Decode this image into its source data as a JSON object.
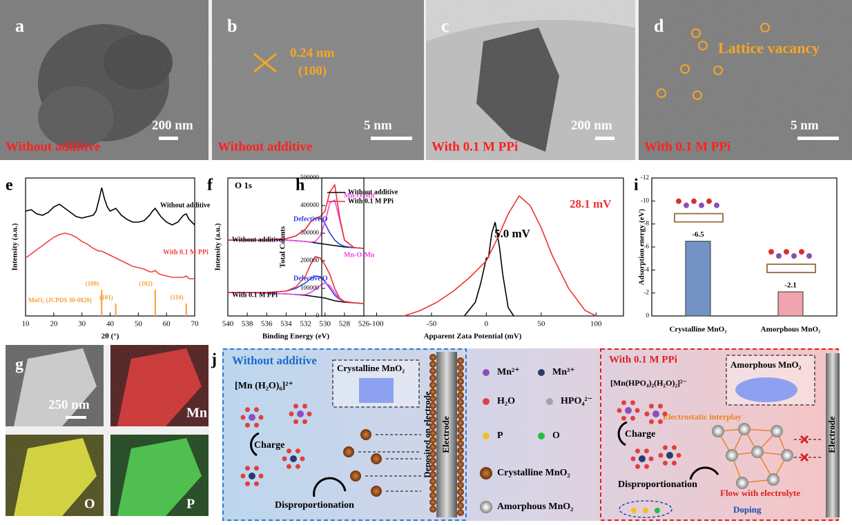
{
  "micrographs": [
    {
      "label": "a",
      "scale": "200 nm",
      "caption": "Without additive"
    },
    {
      "label": "b",
      "spacing": "0.24 nm",
      "plane": "(100)",
      "scale": "5 nm",
      "caption": "Without additive"
    },
    {
      "label": "c",
      "scale": "200 nm",
      "caption": "With 0.1 M PPi"
    },
    {
      "label": "d",
      "annotation": "Lattice vacancy",
      "scale": "5 nm",
      "caption": "With 0.1 M PPi"
    }
  ],
  "chart_data": [
    {
      "panel": "e",
      "type": "line",
      "xlabel": "2θ (°)",
      "ylabel": "Intensity (a.u.)",
      "x": [
        10,
        12,
        14,
        16,
        18,
        20,
        22,
        24,
        26,
        28,
        30,
        32,
        34,
        35,
        36,
        37,
        38,
        39,
        40,
        42,
        44,
        46,
        48,
        50,
        52,
        54,
        55,
        56,
        57,
        58,
        60,
        62,
        64,
        66,
        67,
        68,
        70
      ],
      "series": [
        {
          "name": "Without additive",
          "color": "#000000",
          "values": [
            76,
            77,
            74,
            73,
            75,
            79,
            81,
            78,
            75,
            72,
            71,
            72,
            73,
            76,
            84,
            93,
            85,
            79,
            76,
            78,
            73,
            70,
            68,
            68,
            69,
            73,
            76,
            78,
            75,
            72,
            68,
            66,
            68,
            73,
            74,
            70,
            66
          ]
        },
        {
          "name": "With 0.1 M PPi",
          "color": "#f04040",
          "values": [
            42,
            45,
            48,
            51,
            54,
            57,
            59,
            60,
            59,
            57,
            54,
            52,
            49,
            48,
            47,
            47,
            46,
            45,
            44,
            42,
            40,
            38,
            36,
            35,
            34,
            32,
            32,
            33,
            31,
            30,
            29,
            28,
            28,
            28,
            29,
            27,
            27
          ]
        }
      ],
      "reference": {
        "name": "MnO₂ (JCPDS 30-0820)",
        "color": "#f5a030",
        "positions": [
          37,
          42,
          56,
          67
        ],
        "heights": [
          19,
          9,
          19,
          9
        ],
        "labels": [
          "(100)",
          "(101)",
          "(102)",
          "(110)"
        ]
      },
      "xlim": [
        10,
        70
      ],
      "xticks": [
        10,
        20,
        30,
        40,
        50,
        60,
        70
      ],
      "ylim": [
        0,
        100
      ]
    },
    {
      "panel": "f",
      "type": "line",
      "title": "O 1s",
      "xlabel": "Binding Energy (eV)",
      "ylabel": "Intensity (a.u.)",
      "x": [
        540,
        538,
        536,
        534,
        533,
        532,
        531.5,
        531,
        530.5,
        530,
        529.5,
        529,
        528.5,
        528,
        527,
        526
      ],
      "groups": [
        {
          "name": "Without additive",
          "curves": [
            {
              "color": "#000000",
              "values": [
                55,
                55,
                55,
                55,
                54.5,
                54,
                53.5,
                53,
                52.5,
                52,
                51.5,
                51,
                50.5,
                50,
                49.5,
                49
              ]
            },
            {
              "name": "Defective O",
              "color": "#2a3ee0",
              "values": [
                55,
                55,
                55,
                56,
                58,
                63,
                68,
                71,
                71,
                67,
                60,
                55,
                52,
                50.5,
                49.5,
                49
              ]
            },
            {
              "name": "Mn-O-Mn",
              "color": "#ee44ee",
              "values": [
                55,
                55,
                55,
                55,
                54.5,
                54,
                53.5,
                54,
                58,
                68,
                82,
                84,
                70,
                55,
                49.5,
                49
              ]
            },
            {
              "color": "#f03030",
              "values": [
                55,
                55,
                55,
                56,
                58,
                63,
                68,
                71,
                72,
                76,
                90,
                95,
                72,
                55,
                49.5,
                49
              ]
            }
          ]
        },
        {
          "name": "With 0.1 M PPi",
          "curves": [
            {
              "color": "#000000",
              "values": [
                17,
                17,
                16.5,
                16,
                15.5,
                15,
                14.5,
                14,
                13.5,
                13,
                12,
                11,
                10.5,
                10,
                9.5,
                9
              ]
            },
            {
              "name": "Defective O",
              "color": "#2a3ee0",
              "values": [
                17,
                17,
                17,
                18,
                20,
                24,
                27,
                29,
                28.5,
                25,
                20,
                15,
                12,
                10.5,
                9.5,
                9
              ]
            },
            {
              "name": "Mn-O-Mn",
              "color": "#ee44ee",
              "values": [
                17,
                17,
                16.5,
                16,
                15.5,
                15.5,
                17,
                19,
                22,
                24,
                22,
                17,
                12,
                10.5,
                9.5,
                9
              ]
            },
            {
              "color": "#f03030",
              "values": [
                17,
                17,
                17,
                18,
                21,
                29,
                37,
                43,
                42,
                37,
                30,
                20,
                13,
                10.5,
                9.5,
                9
              ]
            }
          ]
        }
      ],
      "xlim": [
        540,
        526
      ],
      "xticks": [
        540,
        538,
        536,
        534,
        532,
        530,
        528,
        526
      ],
      "ylim": [
        0,
        100
      ]
    },
    {
      "panel": "h",
      "type": "line",
      "xlabel": "Apparent Zata Potential (mV)",
      "ylabel": "Total Counts",
      "series": [
        {
          "name": "Without additive",
          "color": "#000000",
          "x": [
            -20,
            -10,
            -5,
            0,
            2,
            5,
            8,
            12,
            15,
            20,
            25
          ],
          "values": [
            0,
            50000,
            120000,
            210000,
            212000,
            300000,
            340000,
            250000,
            150000,
            30000,
            0
          ]
        },
        {
          "name": "With 0.1 M PPi",
          "color": "#f03030",
          "x": [
            -75,
            -60,
            -45,
            -30,
            -15,
            0,
            10,
            20,
            30,
            40,
            50,
            60,
            75,
            90,
            100
          ],
          "values": [
            0,
            20000,
            50000,
            90000,
            140000,
            200000,
            280000,
            370000,
            435000,
            400000,
            320000,
            220000,
            100000,
            20000,
            0
          ]
        }
      ],
      "annotations": [
        {
          "text": "5.0 mV",
          "color": "#000000"
        },
        {
          "text": "28.1 mV",
          "color": "#f03030"
        }
      ],
      "xlim": [
        -150,
        125
      ],
      "xticks": [
        -100,
        -50,
        0,
        50,
        100
      ],
      "ylim": [
        0,
        500000
      ],
      "yticks": [
        0,
        100000,
        200000,
        300000,
        400000,
        500000
      ],
      "legend": "upper left"
    },
    {
      "panel": "i",
      "type": "bar",
      "ylabel": "Adsorption energy (eV)",
      "categories": [
        "Crystalline MnO₂",
        "Amorphous MnO₂"
      ],
      "values": [
        -6.5,
        -2.1
      ],
      "colors": [
        "#7393c4",
        "#f0a4ac"
      ],
      "ylim": [
        0,
        -12
      ],
      "yticks": [
        -12,
        -10,
        -8,
        -6,
        -4,
        -2,
        0
      ]
    }
  ],
  "mapping": {
    "label": "g",
    "scale": "250 nm",
    "elements": [
      "Mn",
      "O",
      "P"
    ]
  },
  "diagram": {
    "label": "j",
    "left": {
      "title": "Without additive",
      "complex": "[Mn (H₂O)₆]²⁺",
      "crystal": "Crystalline MnO₂",
      "step1": "Charge",
      "step2": "Disproportionation",
      "deposit": "Deposited on electrode",
      "electrode": "Electrode"
    },
    "legend": [
      "Mn²⁺",
      "Mn³⁺",
      "H₂O",
      "HPO₄²⁻",
      "P",
      "O",
      "Crystalline MnO₂",
      "Amorphous MnO₂"
    ],
    "right": {
      "title": "With 0.1 M PPi",
      "complex": "[Mn(HPO₄)₂(H₂O)₂]²⁻",
      "crystal": "Amorphous MnO₂",
      "interplay": "Electrostatic interplay",
      "step1": "Charge",
      "step2": "Disproportionation",
      "doping": "Doping",
      "flow": "Flow with electrolyte",
      "electrode": "Electrode"
    }
  }
}
